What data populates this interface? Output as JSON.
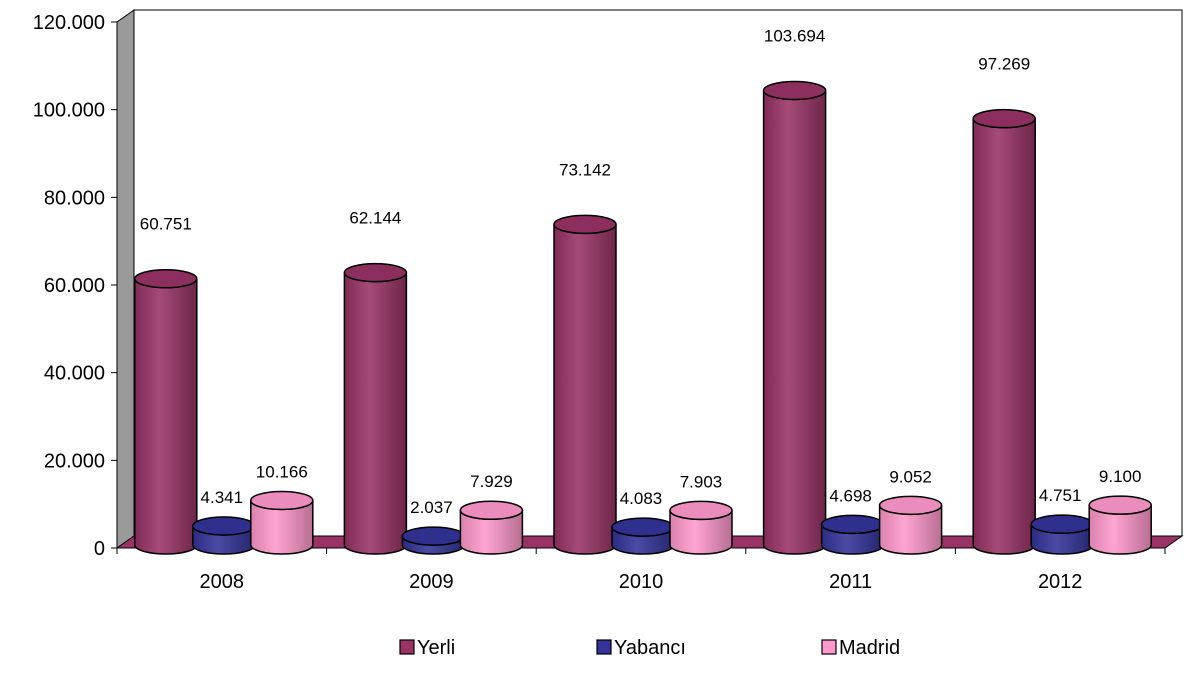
{
  "chart_data": {
    "type": "bar",
    "title": "",
    "xlabel": "",
    "ylabel": "",
    "categories": [
      "2008",
      "2009",
      "2010",
      "2011",
      "2012"
    ],
    "series": [
      {
        "name": "Yerli",
        "values": [
          60751,
          62144,
          73142,
          103694,
          97269
        ],
        "labels": [
          "60.751",
          "62.144",
          "73.142",
          "103.694",
          "97.269"
        ],
        "color": "#993366"
      },
      {
        "name": "Yabancı",
        "values": [
          4341,
          2037,
          4083,
          4698,
          4751
        ],
        "labels": [
          "4.341",
          "2.037",
          "4.083",
          "4.698",
          "4.751"
        ],
        "color": "#333399"
      },
      {
        "name": "Madrid",
        "values": [
          10166,
          7929,
          7903,
          9052,
          9100
        ],
        "labels": [
          "10.166",
          "7.929",
          "7.903",
          "9.052",
          "9.100"
        ],
        "color": "#ff99cc"
      }
    ],
    "ylim": [
      0,
      120000
    ],
    "yticks": [
      0,
      20000,
      40000,
      60000,
      80000,
      100000,
      120000
    ],
    "ytick_labels": [
      "0",
      "20.000",
      "40.000",
      "60.000",
      "80.000",
      "100.000",
      "120.000"
    ],
    "grid": false,
    "bar_shape": "3d-cylinder",
    "legend_position": "bottom"
  }
}
